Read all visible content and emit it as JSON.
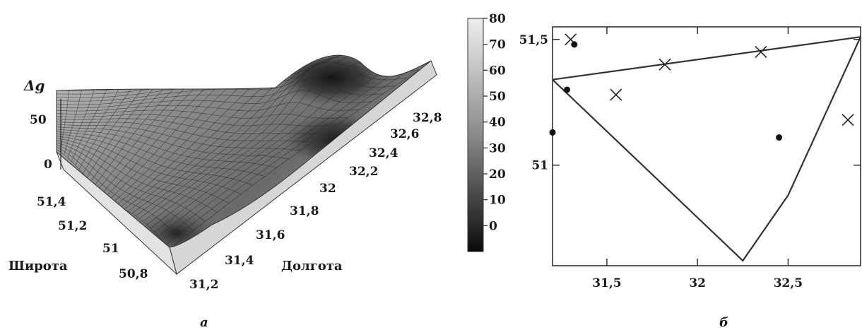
{
  "chart_data": [
    {
      "panel": "а",
      "type": "surface",
      "z_label": "Δg",
      "x_label": "Долгота",
      "y_label": "Широта",
      "x_ticks": [
        "31,2",
        "31,4",
        "31,6",
        "31,8",
        "32",
        "32,2",
        "32,4",
        "32,6",
        "32,8"
      ],
      "y_ticks": [
        "50,8",
        "51",
        "51,2",
        "51,4"
      ],
      "z_ticks": [
        "0",
        "50"
      ],
      "colorbar": {
        "ticks": [
          "0",
          "10",
          "20",
          "30",
          "40",
          "50",
          "60",
          "70",
          "80"
        ],
        "range": [
          -10,
          80
        ],
        "colors": [
          "#0a0a0a",
          "#e6e6e6"
        ]
      }
    },
    {
      "panel": "б",
      "type": "scatter",
      "xlim": [
        31.2,
        32.9
      ],
      "ylim": [
        50.6,
        51.55
      ],
      "x_ticks": [
        "31,5",
        "32",
        "32,5"
      ],
      "y_ticks": [
        "51",
        "51,5"
      ],
      "series": [
        {
          "marker": "cross",
          "points": [
            [
              31.3,
              51.5
            ],
            [
              31.55,
              51.28
            ],
            [
              31.82,
              51.4
            ],
            [
              32.35,
              51.45
            ],
            [
              32.83,
              51.18
            ]
          ]
        },
        {
          "marker": "dot",
          "points": [
            [
              31.32,
              51.48
            ],
            [
              31.28,
              51.3
            ],
            [
              31.2,
              51.13
            ],
            [
              32.45,
              51.11
            ]
          ]
        }
      ],
      "lines": [
        {
          "points": [
            [
              31.2,
              51.34
            ],
            [
              32.9,
              51.51
            ]
          ]
        },
        {
          "points": [
            [
              31.2,
              51.34
            ],
            [
              32.25,
              50.62
            ],
            [
              32.5,
              50.88
            ],
            [
              32.9,
              51.51
            ]
          ]
        }
      ]
    }
  ]
}
